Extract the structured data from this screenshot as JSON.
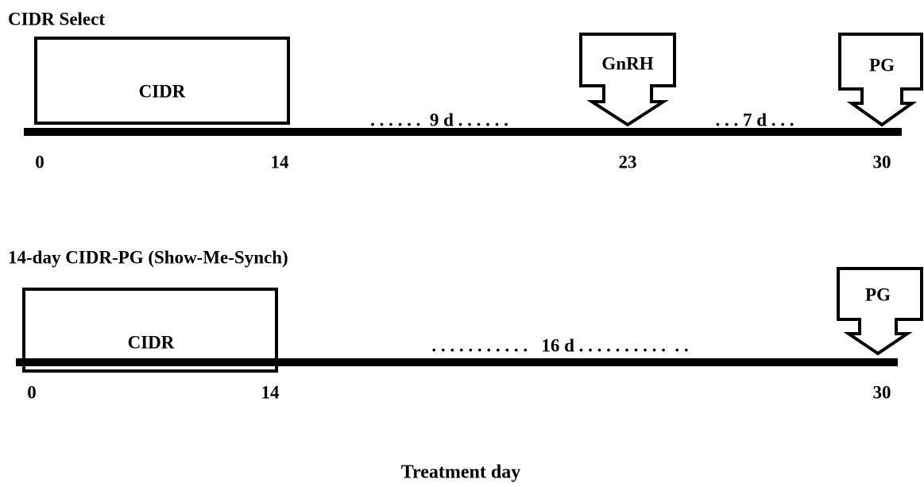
{
  "protocols": [
    {
      "title": "CIDR Select",
      "box": "CIDR",
      "arrows": [
        "GnRH",
        "PG"
      ],
      "intervals": [
        ". . . . . .  9 d . . . . . .",
        ". . . 7 d . . ."
      ],
      "days": [
        "0",
        "14",
        "23",
        "30"
      ]
    },
    {
      "title": "14-day CIDR-PG (Show-Me-Synch)",
      "box": "CIDR",
      "arrows": [
        "PG"
      ],
      "intervals": [
        ". . . . . . . . . . .   16 d . . . . . . . . . .  . ."
      ],
      "days": [
        "0",
        "14",
        "30"
      ]
    }
  ],
  "axis_label": "Treatment day"
}
